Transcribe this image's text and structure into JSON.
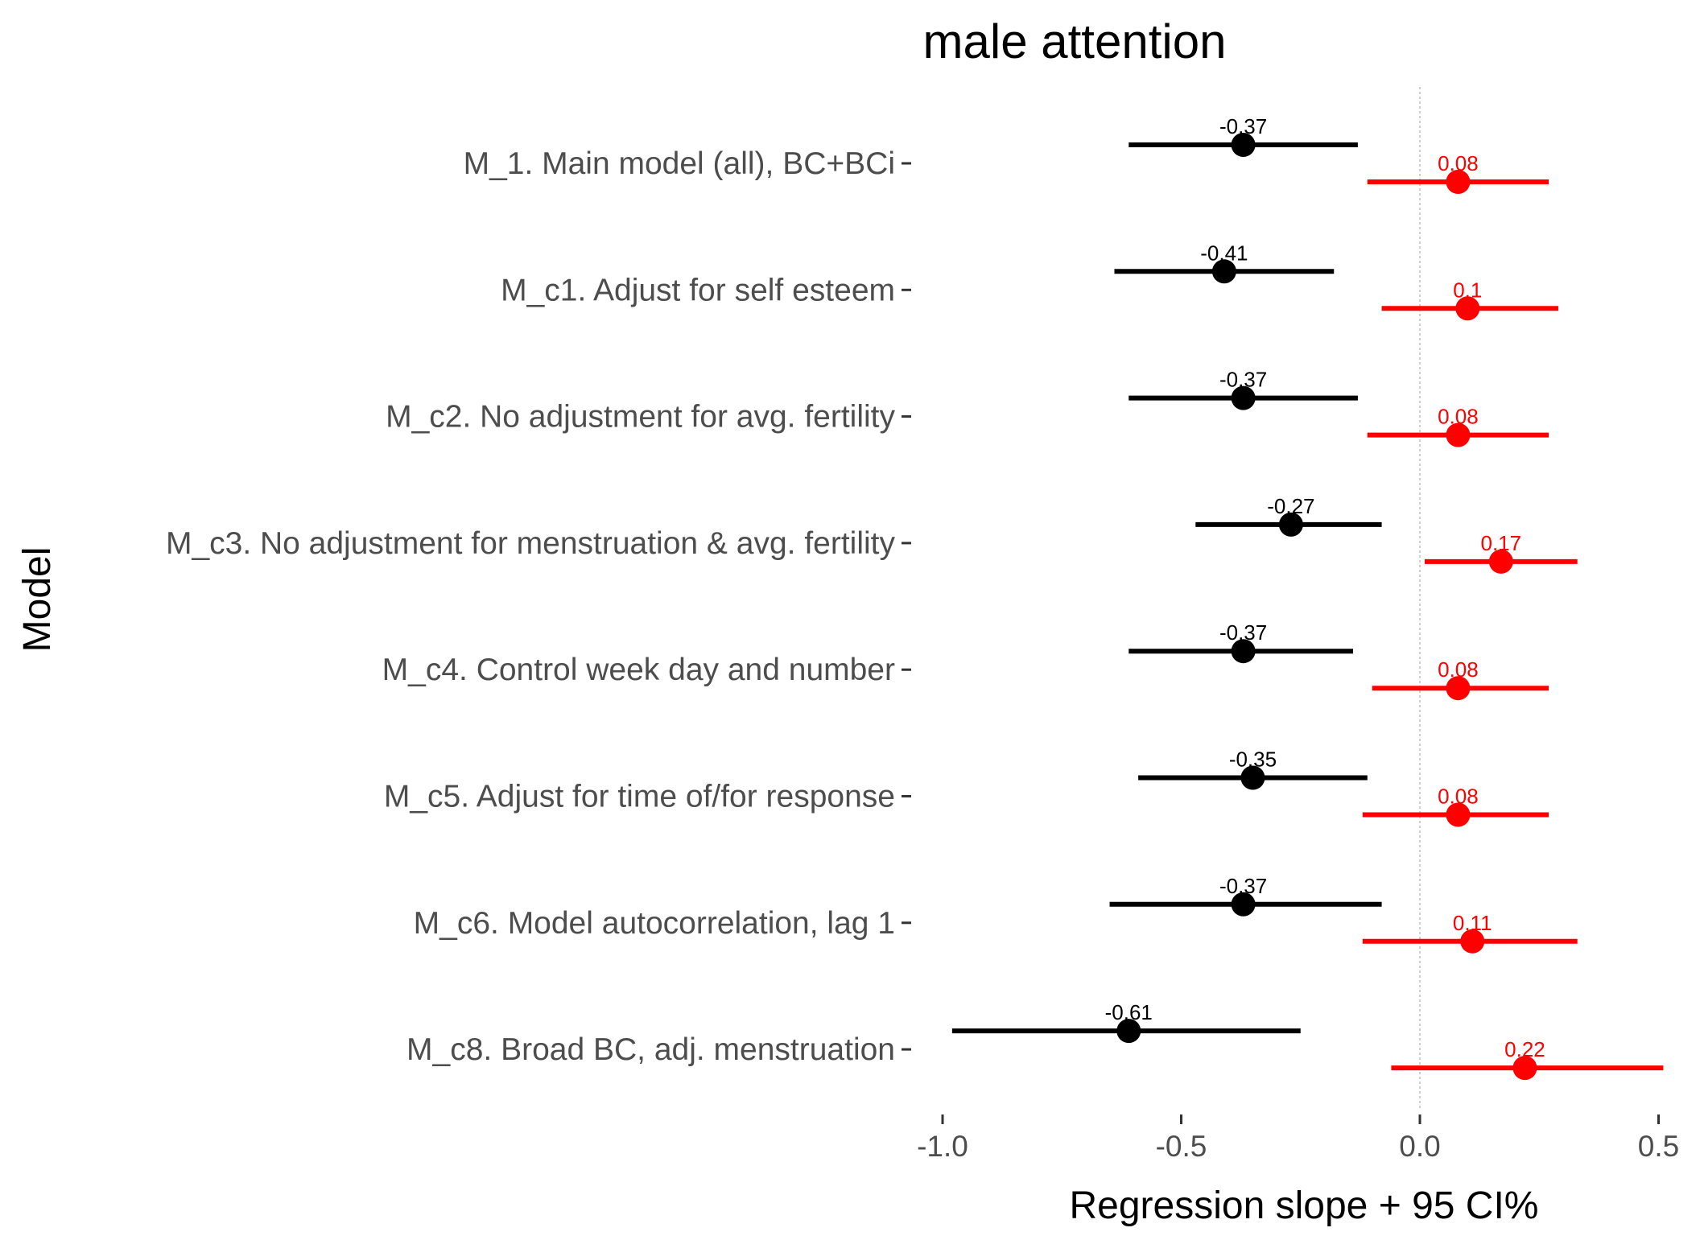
{
  "chart_data": {
    "type": "forest",
    "title": "male attention",
    "xlabel": "Regression slope + 95 CI%",
    "ylabel": "Model",
    "xlim": [
      -1.0,
      0.5
    ],
    "xticks": [
      -1.0,
      -0.5,
      0.0,
      0.5
    ],
    "xtick_labels": [
      "-1.0",
      "-0.5",
      "0.0",
      "0.5"
    ],
    "reference_line": 0,
    "grid": false,
    "categories": [
      "M_1. Main model (all), BC+BCi",
      "M_c1. Adjust for self esteem",
      "M_c2. No adjustment for avg. fertility",
      "M_c3. No adjustment for menstruation & avg. fertility",
      "M_c4. Control week day and number",
      "M_c5. Adjust for time of/for response",
      "M_c6. Model autocorrelation, lag 1",
      "M_c8. Broad BC, adj. menstruation"
    ],
    "series": [
      {
        "color": "#000000",
        "estimates": [
          -0.37,
          -0.41,
          -0.37,
          -0.27,
          -0.37,
          -0.35,
          -0.37,
          -0.61
        ],
        "ci_low": [
          -0.61,
          -0.64,
          -0.61,
          -0.47,
          -0.61,
          -0.59,
          -0.65,
          -0.98
        ],
        "ci_high": [
          -0.13,
          -0.18,
          -0.13,
          -0.08,
          -0.14,
          -0.11,
          -0.08,
          -0.25
        ],
        "labels": [
          "-0.37",
          "-0.41",
          "-0.37",
          "-0.27",
          "-0.37",
          "-0.35",
          "-0.37",
          "-0.61"
        ]
      },
      {
        "color": "#ff0000",
        "estimates": [
          0.08,
          0.1,
          0.08,
          0.17,
          0.08,
          0.08,
          0.11,
          0.22
        ],
        "ci_low": [
          -0.11,
          -0.08,
          -0.11,
          0.01,
          -0.1,
          -0.12,
          -0.12,
          -0.06
        ],
        "ci_high": [
          0.27,
          0.29,
          0.27,
          0.33,
          0.27,
          0.27,
          0.33,
          0.51
        ],
        "labels": [
          "0.08",
          "0.1",
          "0.08",
          "0.17",
          "0.08",
          "0.08",
          "0.11",
          "0.22"
        ]
      }
    ]
  }
}
